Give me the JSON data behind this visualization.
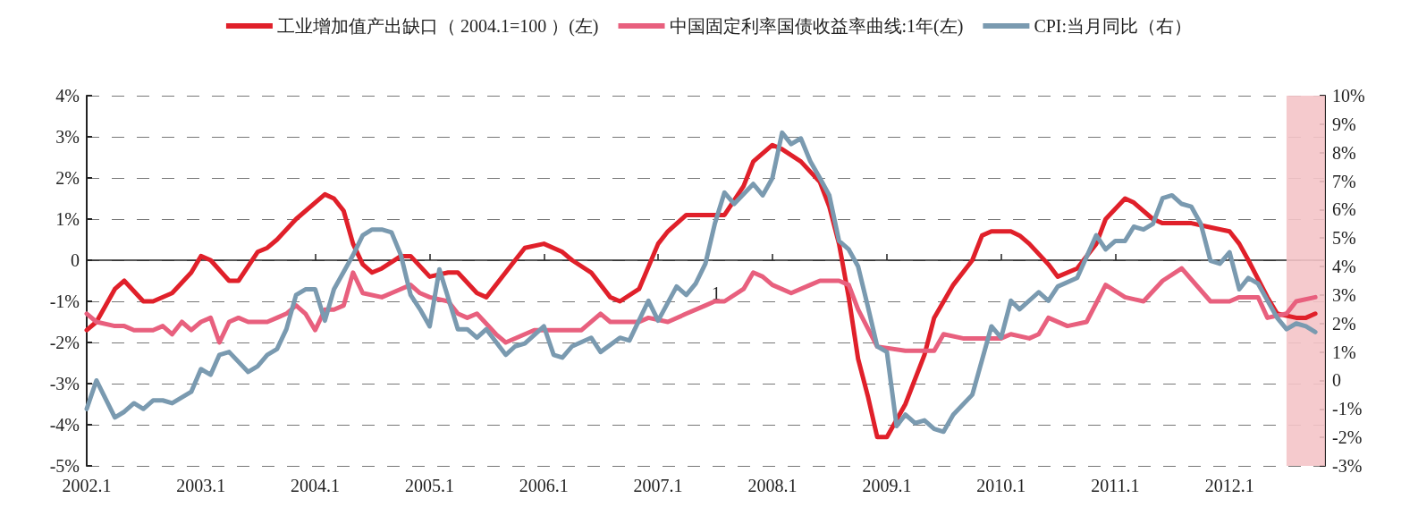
{
  "chart_data": {
    "type": "line",
    "xlim": [
      "2002-01",
      "2012-11"
    ],
    "xticks": [
      {
        "value": "2002-01",
        "label": "2002.1"
      },
      {
        "value": "2003-01",
        "label": "2003.1"
      },
      {
        "value": "2004-01",
        "label": "2004.1"
      },
      {
        "value": "2005-01",
        "label": "2005.1"
      },
      {
        "value": "2006-01",
        "label": "2006.1"
      },
      {
        "value": "2007-01",
        "label": "2007.1"
      },
      {
        "value": "2008-01",
        "label": "2008.1"
      },
      {
        "value": "2009-01",
        "label": "2009.1"
      },
      {
        "value": "2010-01",
        "label": "2010.1"
      },
      {
        "value": "2011-01",
        "label": "2011.1"
      },
      {
        "value": "2012-01",
        "label": "2012.1"
      }
    ],
    "ylim": [
      -5,
      4
    ],
    "yticks": [
      {
        "value": -5,
        "label": "-5%"
      },
      {
        "value": -4,
        "label": "-4%"
      },
      {
        "value": -3,
        "label": "-3%"
      },
      {
        "value": -2,
        "label": "-2%"
      },
      {
        "value": -1,
        "label": "-1%"
      },
      0,
      {
        "value": 1,
        "label": "1%"
      },
      {
        "value": 2,
        "label": "2%"
      },
      {
        "value": 3,
        "label": "3%"
      },
      {
        "value": 4,
        "label": "4%"
      }
    ],
    "y2lim": [
      -3,
      10
    ],
    "y2ticks": [
      {
        "value": -3,
        "label": "-3%"
      },
      {
        "value": -2,
        "label": "-2%"
      },
      {
        "value": -1,
        "label": "-1%"
      },
      0,
      {
        "value": 1,
        "label": "1%"
      },
      {
        "value": 2,
        "label": "2%"
      },
      {
        "value": 3,
        "label": "3%"
      },
      {
        "value": 4,
        "label": "4%"
      },
      {
        "value": 5,
        "label": "5%"
      },
      {
        "value": 6,
        "label": "6%"
      },
      {
        "value": 7,
        "label": "7%"
      },
      {
        "value": 8,
        "label": "8%"
      },
      {
        "value": 9,
        "label": "9%"
      },
      {
        "value": 10,
        "label": "10%"
      }
    ],
    "grid": "y",
    "legend": "top",
    "marker": "none",
    "line_style": "solid",
    "annotations": [
      "1"
    ],
    "bands": [
      {
        "axis": "x",
        "from": "2012-07",
        "to": "2012-11",
        "color": "#f4c4c8"
      }
    ],
    "series": [
      {
        "name": "工业增加值产出缺口（ 2004.1=100 ）(左)",
        "color": "#e0202a",
        "x": [
          "2002-01",
          "2002-02",
          "2002-04",
          "2002-05",
          "2002-07",
          "2002-08",
          "2002-10",
          "2002-12",
          "2003-01",
          "2003-02",
          "2003-04",
          "2003-05",
          "2003-07",
          "2003-08",
          "2003-09",
          "2003-11",
          "2004-01",
          "2004-02",
          "2004-03",
          "2004-04",
          "2004-05",
          "2004-06",
          "2004-07",
          "2004-08",
          "2004-10",
          "2004-11",
          "2005-01",
          "2005-03",
          "2005-04",
          "2005-06",
          "2005-07",
          "2005-10",
          "2005-11",
          "2006-01",
          "2006-03",
          "2006-04",
          "2006-06",
          "2006-08",
          "2006-09",
          "2006-11",
          "2007-01",
          "2007-02",
          "2007-04",
          "2007-06",
          "2007-08",
          "2007-10",
          "2007-11",
          "2008-01",
          "2008-02",
          "2008-04",
          "2008-06",
          "2008-07",
          "2008-08",
          "2008-09",
          "2008-10",
          "2008-11",
          "2008-12",
          "2009-01",
          "2009-03",
          "2009-05",
          "2009-06",
          "2009-08",
          "2009-10",
          "2009-11",
          "2009-12",
          "2010-02",
          "2010-03",
          "2010-04",
          "2010-06",
          "2010-07",
          "2010-09",
          "2010-11",
          "2010-12",
          "2011-02",
          "2011-03",
          "2011-05",
          "2011-06",
          "2011-09",
          "2011-11",
          "2012-01",
          "2012-02",
          "2012-03",
          "2012-05",
          "2012-06",
          "2012-08",
          "2012-09",
          "2012-10"
        ],
        "values": [
          -1.7,
          -1.5,
          -0.7,
          -0.5,
          -1.0,
          -1.0,
          -0.8,
          -0.3,
          0.1,
          0.0,
          -0.5,
          -0.5,
          0.2,
          0.3,
          0.5,
          1.0,
          1.4,
          1.6,
          1.5,
          1.2,
          0.4,
          -0.1,
          -0.3,
          -0.2,
          0.1,
          0.1,
          -0.4,
          -0.3,
          -0.3,
          -0.8,
          -0.9,
          0.0,
          0.3,
          0.4,
          0.2,
          0.0,
          -0.3,
          -0.9,
          -1.0,
          -0.7,
          0.4,
          0.7,
          1.1,
          1.1,
          1.1,
          1.8,
          2.4,
          2.8,
          2.7,
          2.4,
          1.9,
          1.3,
          0.4,
          -0.9,
          -2.4,
          -3.3,
          -4.3,
          -4.3,
          -3.5,
          -2.3,
          -1.4,
          -0.6,
          0.0,
          0.6,
          0.7,
          0.7,
          0.6,
          0.4,
          -0.1,
          -0.4,
          -0.2,
          0.4,
          1.0,
          1.5,
          1.4,
          1.0,
          0.9,
          0.9,
          0.8,
          0.7,
          0.4,
          0.0,
          -0.9,
          -1.3,
          -1.4,
          -1.4,
          -1.3
        ]
      },
      {
        "name": "中国固定利率国债收益率曲线:1年(左)",
        "color": "#e8607e",
        "x": [
          "2002-01",
          "2002-02",
          "2002-04",
          "2002-05",
          "2002-06",
          "2002-08",
          "2002-09",
          "2002-10",
          "2002-11",
          "2002-12",
          "2003-01",
          "2003-02",
          "2003-03",
          "2003-04",
          "2003-05",
          "2003-06",
          "2003-08",
          "2003-09",
          "2003-10",
          "2003-11",
          "2003-12",
          "2004-01",
          "2004-02",
          "2004-03",
          "2004-04",
          "2004-05",
          "2004-06",
          "2004-08",
          "2004-09",
          "2004-10",
          "2004-11",
          "2004-12",
          "2005-01",
          "2005-03",
          "2005-04",
          "2005-05",
          "2005-06",
          "2005-08",
          "2005-09",
          "2005-11",
          "2005-12",
          "2006-01",
          "2006-03",
          "2006-05",
          "2006-07",
          "2006-08",
          "2006-11",
          "2006-12",
          "2007-02",
          "2007-04",
          "2007-06",
          "2007-07",
          "2007-08",
          "2007-10",
          "2007-11",
          "2007-12",
          "2008-01",
          "2008-03",
          "2008-05",
          "2008-06",
          "2008-08",
          "2008-09",
          "2008-10",
          "2008-12",
          "2009-03",
          "2009-06",
          "2009-07",
          "2009-09",
          "2009-11",
          "2010-01",
          "2010-02",
          "2010-04",
          "2010-05",
          "2010-06",
          "2010-08",
          "2010-10",
          "2010-12",
          "2011-02",
          "2011-04",
          "2011-06",
          "2011-08",
          "2011-11",
          "2012-01",
          "2012-02",
          "2012-04",
          "2012-05",
          "2012-07",
          "2012-08",
          "2012-10"
        ],
        "values": [
          -1.3,
          -1.5,
          -1.6,
          -1.6,
          -1.7,
          -1.7,
          -1.6,
          -1.8,
          -1.5,
          -1.7,
          -1.5,
          -1.4,
          -2.0,
          -1.5,
          -1.4,
          -1.5,
          -1.5,
          -1.4,
          -1.3,
          -1.1,
          -1.3,
          -1.7,
          -1.2,
          -1.2,
          -1.1,
          -0.3,
          -0.8,
          -0.9,
          -0.8,
          -0.7,
          -0.6,
          -0.8,
          -0.9,
          -1.0,
          -1.3,
          -1.4,
          -1.3,
          -1.8,
          -2.0,
          -1.8,
          -1.7,
          -1.7,
          -1.7,
          -1.7,
          -1.3,
          -1.5,
          -1.5,
          -1.4,
          -1.5,
          -1.3,
          -1.1,
          -1.0,
          -1.0,
          -0.7,
          -0.3,
          -0.4,
          -0.6,
          -0.8,
          -0.6,
          -0.5,
          -0.5,
          -0.6,
          -1.2,
          -2.1,
          -2.2,
          -2.2,
          -1.8,
          -1.9,
          -1.9,
          -1.9,
          -1.8,
          -1.9,
          -1.8,
          -1.4,
          -1.6,
          -1.5,
          -0.6,
          -0.9,
          -1.0,
          -0.5,
          -0.2,
          -1.0,
          -1.0,
          -0.9,
          -0.9,
          -1.4,
          -1.3,
          -1.0,
          -0.9
        ]
      },
      {
        "name": "CPI:当月同比（右）",
        "color": "#7a9ab0",
        "axis": "y2",
        "x": [
          "2002-01",
          "2002-02",
          "2002-04",
          "2002-05",
          "2002-06",
          "2002-07",
          "2002-08",
          "2002-09",
          "2002-10",
          "2002-12",
          "2003-01",
          "2003-02",
          "2003-03",
          "2003-04",
          "2003-06",
          "2003-07",
          "2003-08",
          "2003-09",
          "2003-10",
          "2003-11",
          "2003-12",
          "2004-01",
          "2004-02",
          "2004-03",
          "2004-05",
          "2004-06",
          "2004-07",
          "2004-08",
          "2004-09",
          "2004-10",
          "2004-11",
          "2004-12",
          "2005-01",
          "2005-02",
          "2005-04",
          "2005-05",
          "2005-06",
          "2005-07",
          "2005-09",
          "2005-10",
          "2005-11",
          "2006-01",
          "2006-02",
          "2006-03",
          "2006-04",
          "2006-06",
          "2006-07",
          "2006-09",
          "2006-10",
          "2006-12",
          "2007-01",
          "2007-03",
          "2007-04",
          "2007-05",
          "2007-06",
          "2007-07",
          "2007-08",
          "2007-09",
          "2007-11",
          "2007-12",
          "2008-01",
          "2008-02",
          "2008-03",
          "2008-04",
          "2008-05",
          "2008-06",
          "2008-07",
          "2008-08",
          "2008-09",
          "2008-10",
          "2008-11",
          "2008-12",
          "2009-01",
          "2009-02",
          "2009-03",
          "2009-04",
          "2009-05",
          "2009-06",
          "2009-07",
          "2009-08",
          "2009-10",
          "2009-12",
          "2010-01",
          "2010-02",
          "2010-03",
          "2010-05",
          "2010-06",
          "2010-07",
          "2010-09",
          "2010-11",
          "2010-12",
          "2011-01",
          "2011-02",
          "2011-03",
          "2011-04",
          "2011-05",
          "2011-06",
          "2011-07",
          "2011-08",
          "2011-09",
          "2011-10",
          "2011-11",
          "2011-12",
          "2012-01",
          "2012-02",
          "2012-03",
          "2012-04",
          "2012-06",
          "2012-07",
          "2012-08",
          "2012-09",
          "2012-10"
        ],
        "values": [
          -1.0,
          0.0,
          -1.3,
          -1.1,
          -0.8,
          -1.0,
          -0.7,
          -0.7,
          -0.8,
          -0.4,
          0.4,
          0.2,
          0.9,
          1.0,
          0.3,
          0.5,
          0.9,
          1.1,
          1.8,
          3.0,
          3.2,
          3.2,
          2.1,
          3.2,
          4.4,
          5.1,
          5.3,
          5.3,
          5.2,
          4.4,
          3.0,
          2.5,
          1.9,
          3.9,
          1.8,
          1.8,
          1.5,
          1.8,
          0.9,
          1.2,
          1.3,
          1.9,
          0.9,
          0.8,
          1.2,
          1.5,
          1.0,
          1.5,
          1.4,
          2.8,
          2.1,
          3.3,
          3.0,
          3.4,
          4.1,
          5.5,
          6.6,
          6.2,
          6.9,
          6.5,
          7.1,
          8.7,
          8.3,
          8.5,
          7.7,
          7.1,
          6.5,
          4.9,
          4.6,
          4.0,
          2.6,
          1.2,
          1.0,
          -1.6,
          -1.2,
          -1.5,
          -1.4,
          -1.7,
          -1.8,
          -1.2,
          -0.5,
          1.9,
          1.5,
          2.8,
          2.5,
          3.1,
          2.8,
          3.3,
          3.6,
          5.1,
          4.6,
          4.9,
          4.9,
          5.4,
          5.3,
          5.5,
          6.4,
          6.5,
          6.2,
          6.1,
          5.5,
          4.2,
          4.1,
          4.5,
          3.2,
          3.6,
          3.4,
          2.2,
          1.8,
          2.0,
          1.9,
          1.7
        ]
      }
    ]
  }
}
